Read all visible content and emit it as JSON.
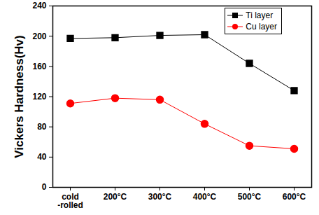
{
  "chart_data": {
    "type": "line",
    "ylabel": "Vickers Hardness(Hv)",
    "categories": [
      "cold\n-rolled",
      "200°C",
      "300°C",
      "400°C",
      "500°C",
      "600°C"
    ],
    "series": [
      {
        "name": "Ti layer",
        "color": "#000000",
        "marker": "square",
        "values": [
          197,
          198,
          201,
          202,
          164,
          128
        ]
      },
      {
        "name": "Cu layer",
        "color": "#ff0000",
        "marker": "circle",
        "values": [
          111,
          118,
          116,
          84,
          55,
          51
        ]
      }
    ],
    "ylim": [
      0,
      240
    ],
    "yticks": [
      0,
      40,
      80,
      120,
      160,
      200,
      240
    ],
    "grid": false,
    "legend": "upper right"
  }
}
